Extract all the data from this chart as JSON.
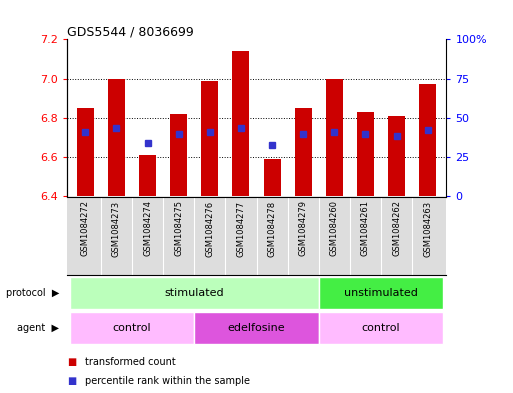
{
  "title": "GDS5544 / 8036699",
  "samples": [
    "GSM1084272",
    "GSM1084273",
    "GSM1084274",
    "GSM1084275",
    "GSM1084276",
    "GSM1084277",
    "GSM1084278",
    "GSM1084279",
    "GSM1084260",
    "GSM1084261",
    "GSM1084262",
    "GSM1084263"
  ],
  "bar_values": [
    6.85,
    7.0,
    6.61,
    6.82,
    6.99,
    7.14,
    6.59,
    6.85,
    7.0,
    6.83,
    6.81,
    6.97
  ],
  "percentile_values": [
    6.73,
    6.75,
    6.67,
    6.72,
    6.73,
    6.75,
    6.66,
    6.72,
    6.73,
    6.72,
    6.71,
    6.74
  ],
  "bar_bottom": 6.4,
  "ylim_min": 6.4,
  "ylim_max": 7.2,
  "yticks_left": [
    6.4,
    6.6,
    6.8,
    7.0,
    7.2
  ],
  "yticks_right_vals": [
    6.4,
    6.6,
    6.8,
    7.0,
    7.2
  ],
  "yticks_right_labels": [
    "0",
    "25",
    "50",
    "75",
    "100%"
  ],
  "bar_color": "#cc0000",
  "dot_color": "#3333cc",
  "protocol_groups": [
    {
      "label": "stimulated",
      "start": 0,
      "end": 8,
      "color": "#bbffbb"
    },
    {
      "label": "unstimulated",
      "start": 8,
      "end": 12,
      "color": "#44ee44"
    }
  ],
  "agent_groups": [
    {
      "label": "control",
      "start": 0,
      "end": 4,
      "color": "#ffbbff"
    },
    {
      "label": "edelfosine",
      "start": 4,
      "end": 8,
      "color": "#dd55dd"
    },
    {
      "label": "control",
      "start": 8,
      "end": 12,
      "color": "#ffbbff"
    }
  ],
  "legend_items": [
    {
      "color": "#cc0000",
      "label": "transformed count"
    },
    {
      "color": "#3333cc",
      "label": "percentile rank within the sample"
    }
  ],
  "gridline_vals": [
    6.6,
    6.8,
    7.0
  ]
}
